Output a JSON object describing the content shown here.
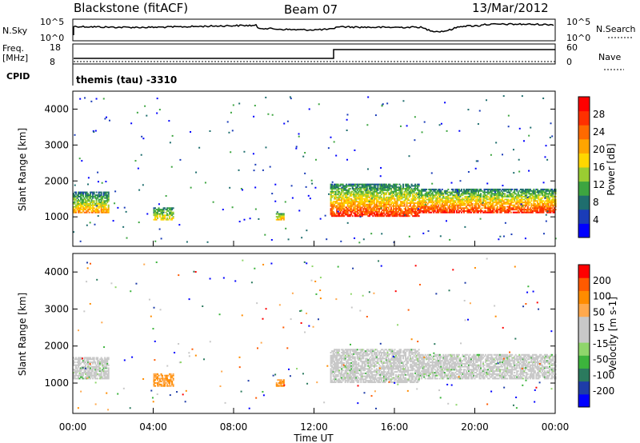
{
  "header": {
    "station": "Blackstone (fitACF)",
    "beam": "Beam 07",
    "date": "13/Mar/2012"
  },
  "panels": {
    "nsky": {
      "label": "N.Sky",
      "ticks": [
        "10^5",
        "10^0"
      ],
      "right_label": "N.Search",
      "right_ticks": [
        "10^5",
        "10^0"
      ]
    },
    "freq": {
      "label1": "Freq.",
      "label2": "[MHz]",
      "ticks": [
        "18",
        "8"
      ],
      "right_label": "Nave",
      "right_ticks": [
        "60",
        "0"
      ]
    },
    "cpid": {
      "label": "CPID",
      "mode_text": "themis (tau) -3310"
    }
  },
  "colors": {
    "power_bar": [
      "#0000ff",
      "#1a3cb8",
      "#1f6e6e",
      "#3da540",
      "#9acd32",
      "#ffd700",
      "#ffa500",
      "#ff6a00",
      "#ff3000",
      "#ff0000"
    ],
    "velocity_bar": [
      "#ff0000",
      "#ff5a00",
      "#ff8c00",
      "#ffa94d",
      "#c8c8c8",
      "#c8c8c8",
      "#8fd66b",
      "#3cb43c",
      "#2b7a5e",
      "#1e3ca8",
      "#0000ff"
    ],
    "ground_scatter": "#c8c8c8"
  },
  "chart_data": [
    {
      "type": "heatmap",
      "name": "Power",
      "ylabel": "Slant Range [km]",
      "yticks": [
        "1000",
        "2000",
        "3000",
        "4000"
      ],
      "colorbar_label": "Power [dB]",
      "colorbar_ticks": [
        "28",
        "24",
        "20",
        "16",
        "12",
        "8",
        "4"
      ],
      "colorbar_range": [
        0,
        32
      ],
      "xlim": [
        0,
        24
      ],
      "ylim": [
        180,
        4500
      ],
      "bands": [
        {
          "x": [
            0.0,
            1.8
          ],
          "range": [
            1100,
            1700
          ],
          "power": [
            6,
            22
          ]
        },
        {
          "x": [
            4.0,
            5.0
          ],
          "range": [
            900,
            1250
          ],
          "power": [
            8,
            18
          ]
        },
        {
          "x": [
            10.1,
            10.5
          ],
          "range": [
            900,
            1100
          ],
          "power": [
            10,
            20
          ]
        },
        {
          "x": [
            12.8,
            17.2
          ],
          "range": [
            1000,
            1900
          ],
          "power": [
            8,
            28
          ]
        },
        {
          "x": [
            17.2,
            24.0
          ],
          "range": [
            1100,
            1750
          ],
          "power": [
            8,
            28
          ]
        }
      ]
    },
    {
      "type": "heatmap",
      "name": "Velocity",
      "ylabel": "Slant Range [km]",
      "yticks": [
        "1000",
        "2000",
        "3000",
        "4000"
      ],
      "colorbar_label": "Velocity [m s-1]",
      "colorbar_ticks": [
        "200",
        "100",
        "50",
        "15",
        "-15",
        "-50",
        "-100",
        "-200"
      ],
      "xlabel": "Time UT",
      "xticks": [
        "00:00",
        "04:00",
        "08:00",
        "12:00",
        "16:00",
        "20:00",
        "00:00"
      ],
      "xlim": [
        0,
        24
      ],
      "ylim": [
        180,
        4500
      ]
    }
  ]
}
